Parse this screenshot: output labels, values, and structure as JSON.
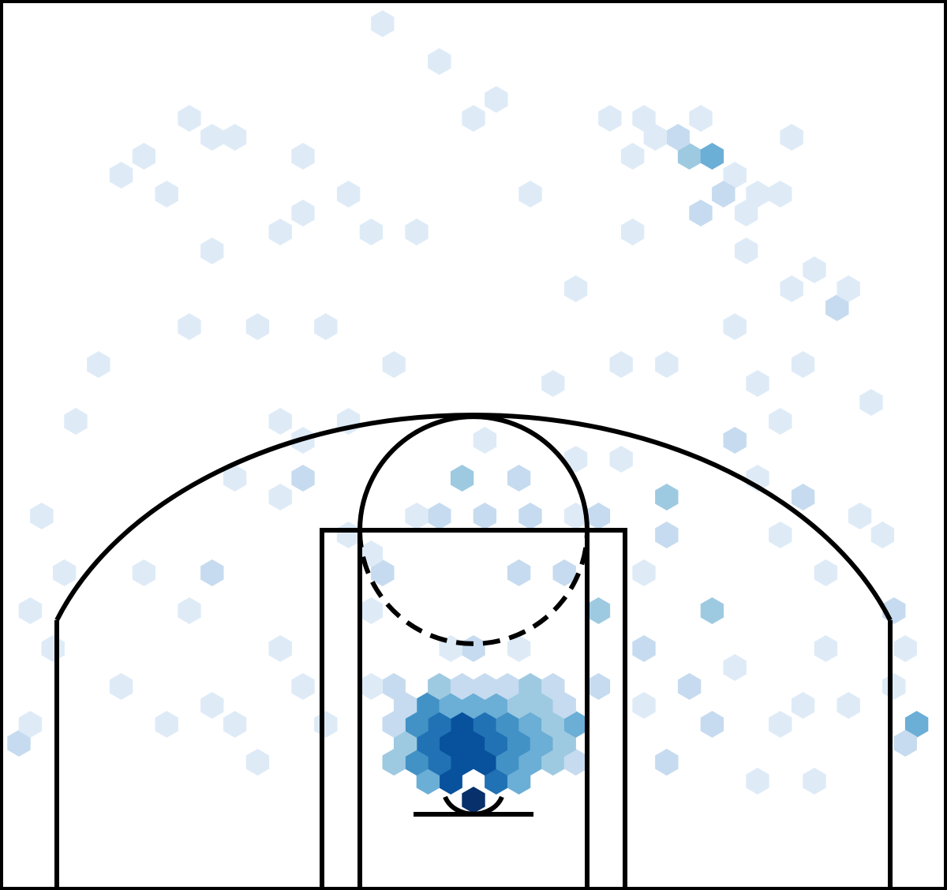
{
  "chart_data": {
    "type": "heatmap",
    "subtype": "hexbin-shot-chart",
    "title": "",
    "xlabel": "",
    "ylabel": "",
    "xlim": [
      -250,
      250
    ],
    "ylim": [
      -47.5,
      422.5
    ],
    "axes_visible": false,
    "grid": false,
    "legend": "none",
    "colormap": [
      "#f7fbff",
      "#deebf7",
      "#c6dbef",
      "#9ecae1",
      "#6baed6",
      "#4292c6",
      "#2171b5",
      "#08519c",
      "#08306b"
    ],
    "bins": [
      {
        "x": 0,
        "y": 0,
        "level": 8
      },
      {
        "x": -12,
        "y": 10,
        "level": 7
      },
      {
        "x": 12,
        "y": 10,
        "level": 6
      },
      {
        "x": -24,
        "y": 10,
        "level": 4
      },
      {
        "x": 24,
        "y": 10,
        "level": 4
      },
      {
        "x": -6,
        "y": 20,
        "level": 7
      },
      {
        "x": 6,
        "y": 20,
        "level": 7
      },
      {
        "x": -18,
        "y": 20,
        "level": 6
      },
      {
        "x": 18,
        "y": 20,
        "level": 5
      },
      {
        "x": -30,
        "y": 20,
        "level": 5
      },
      {
        "x": 30,
        "y": 20,
        "level": 4
      },
      {
        "x": -42,
        "y": 20,
        "level": 3
      },
      {
        "x": 42,
        "y": 20,
        "level": 3
      },
      {
        "x": 54,
        "y": 20,
        "level": 2
      },
      {
        "x": -12,
        "y": 30,
        "level": 7
      },
      {
        "x": 0,
        "y": 30,
        "level": 7
      },
      {
        "x": 12,
        "y": 30,
        "level": 6
      },
      {
        "x": -24,
        "y": 30,
        "level": 6
      },
      {
        "x": 24,
        "y": 30,
        "level": 5
      },
      {
        "x": -36,
        "y": 30,
        "level": 3
      },
      {
        "x": 36,
        "y": 30,
        "level": 4
      },
      {
        "x": 48,
        "y": 30,
        "level": 3
      },
      {
        "x": -6,
        "y": 40,
        "level": 7
      },
      {
        "x": 6,
        "y": 40,
        "level": 6
      },
      {
        "x": -18,
        "y": 40,
        "level": 6
      },
      {
        "x": 18,
        "y": 40,
        "level": 5
      },
      {
        "x": -30,
        "y": 40,
        "level": 5
      },
      {
        "x": 30,
        "y": 40,
        "level": 4
      },
      {
        "x": 42,
        "y": 40,
        "level": 3
      },
      {
        "x": 54,
        "y": 40,
        "level": 4
      },
      {
        "x": -42,
        "y": 40,
        "level": 2
      },
      {
        "x": -24,
        "y": 50,
        "level": 5
      },
      {
        "x": -12,
        "y": 50,
        "level": 4
      },
      {
        "x": 0,
        "y": 50,
        "level": 4
      },
      {
        "x": 12,
        "y": 50,
        "level": 4
      },
      {
        "x": 24,
        "y": 50,
        "level": 3
      },
      {
        "x": 36,
        "y": 50,
        "level": 3
      },
      {
        "x": 48,
        "y": 50,
        "level": 2
      },
      {
        "x": -36,
        "y": 50,
        "level": 2
      },
      {
        "x": -18,
        "y": 60,
        "level": 3
      },
      {
        "x": -6,
        "y": 60,
        "level": 2
      },
      {
        "x": 6,
        "y": 60,
        "level": 2
      },
      {
        "x": 18,
        "y": 60,
        "level": 2
      },
      {
        "x": 30,
        "y": 60,
        "level": 3
      },
      {
        "x": 42,
        "y": 60,
        "level": 2
      },
      {
        "x": -42,
        "y": 60,
        "level": 2
      },
      {
        "x": -54,
        "y": 60,
        "level": 1
      },
      {
        "x": 0,
        "y": 80,
        "level": 2
      },
      {
        "x": -12,
        "y": 80,
        "level": 1
      },
      {
        "x": 24,
        "y": 80,
        "level": 1
      },
      {
        "x": -48,
        "y": 120,
        "level": 2
      },
      {
        "x": 24,
        "y": 120,
        "level": 2
      },
      {
        "x": 48,
        "y": 120,
        "level": 2
      },
      {
        "x": -18,
        "y": 150,
        "level": 2
      },
      {
        "x": 6,
        "y": 150,
        "level": 2
      },
      {
        "x": 30,
        "y": 150,
        "level": 2
      },
      {
        "x": 54,
        "y": 150,
        "level": 1
      },
      {
        "x": 66,
        "y": 150,
        "level": 2
      },
      {
        "x": -6,
        "y": 170,
        "level": 3
      },
      {
        "x": 24,
        "y": 170,
        "level": 2
      },
      {
        "x": -90,
        "y": 170,
        "level": 2
      },
      {
        "x": 6,
        "y": 190,
        "level": 1
      },
      {
        "x": -54,
        "y": 100,
        "level": 1
      },
      {
        "x": 66,
        "y": 100,
        "level": 3
      },
      {
        "x": 90,
        "y": 80,
        "level": 2
      },
      {
        "x": 126,
        "y": 100,
        "level": 3
      },
      {
        "x": 126,
        "y": 40,
        "level": 2
      },
      {
        "x": 102,
        "y": 20,
        "level": 2
      },
      {
        "x": 114,
        "y": 60,
        "level": 2
      },
      {
        "x": 102,
        "y": 140,
        "level": 2
      },
      {
        "x": 102,
        "y": 160,
        "level": 3
      },
      {
        "x": 162,
        "y": 140,
        "level": 1
      },
      {
        "x": 174,
        "y": 160,
        "level": 2
      },
      {
        "x": 138,
        "y": 190,
        "level": 2
      },
      {
        "x": 150,
        "y": 170,
        "level": 1
      },
      {
        "x": 138,
        "y": 250,
        "level": 1
      },
      {
        "x": 222,
        "y": 100,
        "level": 2
      },
      {
        "x": 234,
        "y": 40,
        "level": 4
      },
      {
        "x": 228,
        "y": 30,
        "level": 2
      },
      {
        "x": 228,
        "y": 80,
        "level": 1
      },
      {
        "x": 210,
        "y": 210,
        "level": 1
      },
      {
        "x": 192,
        "y": 260,
        "level": 2
      },
      {
        "x": 198,
        "y": 270,
        "level": 1
      },
      {
        "x": 180,
        "y": 280,
        "level": 1
      },
      {
        "x": 150,
        "y": 320,
        "level": 1
      },
      {
        "x": 138,
        "y": 330,
        "level": 1
      },
      {
        "x": 144,
        "y": 290,
        "level": 1
      },
      {
        "x": 114,
        "y": 340,
        "level": 3
      },
      {
        "x": 126,
        "y": 340,
        "level": 4
      },
      {
        "x": 108,
        "y": 350,
        "level": 2
      },
      {
        "x": 96,
        "y": 350,
        "level": 1
      },
      {
        "x": 132,
        "y": 320,
        "level": 2
      },
      {
        "x": 120,
        "y": 310,
        "level": 2
      },
      {
        "x": 144,
        "y": 310,
        "level": 1
      },
      {
        "x": 162,
        "y": 320,
        "level": 1
      },
      {
        "x": 90,
        "y": 360,
        "level": 1
      },
      {
        "x": 84,
        "y": 340,
        "level": 1
      },
      {
        "x": 120,
        "y": 360,
        "level": 1
      },
      {
        "x": 168,
        "y": 350,
        "level": 1
      },
      {
        "x": -48,
        "y": 410,
        "level": 1
      },
      {
        "x": -18,
        "y": 390,
        "level": 1
      },
      {
        "x": 12,
        "y": 370,
        "level": 1
      },
      {
        "x": 0,
        "y": 360,
        "level": 1
      },
      {
        "x": -126,
        "y": 350,
        "level": 1
      },
      {
        "x": -90,
        "y": 340,
        "level": 1
      },
      {
        "x": 72,
        "y": 360,
        "level": 1
      },
      {
        "x": 84,
        "y": 300,
        "level": 1
      },
      {
        "x": -198,
        "y": 230,
        "level": 1
      },
      {
        "x": -210,
        "y": 200,
        "level": 1
      },
      {
        "x": -234,
        "y": 100,
        "level": 1
      },
      {
        "x": -240,
        "y": 30,
        "level": 2
      },
      {
        "x": -234,
        "y": 40,
        "level": 1
      },
      {
        "x": -186,
        "y": 60,
        "level": 1
      },
      {
        "x": -162,
        "y": 40,
        "level": 1
      },
      {
        "x": -138,
        "y": 50,
        "level": 1
      },
      {
        "x": -174,
        "y": 120,
        "level": 1
      },
      {
        "x": -138,
        "y": 120,
        "level": 2
      },
      {
        "x": -150,
        "y": 100,
        "level": 1
      },
      {
        "x": -102,
        "y": 160,
        "level": 1
      },
      {
        "x": -126,
        "y": 170,
        "level": 1
      },
      {
        "x": -90,
        "y": 190,
        "level": 1
      },
      {
        "x": -102,
        "y": 200,
        "level": 1
      },
      {
        "x": -114,
        "y": 250,
        "level": 1
      },
      {
        "x": -78,
        "y": 250,
        "level": 1
      },
      {
        "x": -150,
        "y": 250,
        "level": 1
      },
      {
        "x": -138,
        "y": 290,
        "level": 1
      },
      {
        "x": -102,
        "y": 300,
        "level": 1
      },
      {
        "x": -54,
        "y": 300,
        "level": 1
      },
      {
        "x": -66,
        "y": 320,
        "level": 1
      },
      {
        "x": -162,
        "y": 320,
        "level": 1
      },
      {
        "x": -174,
        "y": 340,
        "level": 1
      },
      {
        "x": -186,
        "y": 330,
        "level": 1
      },
      {
        "x": -150,
        "y": 360,
        "level": 1
      },
      {
        "x": -138,
        "y": 350,
        "level": 1
      },
      {
        "x": -90,
        "y": 310,
        "level": 1
      },
      {
        "x": -30,
        "y": 300,
        "level": 1
      },
      {
        "x": 30,
        "y": 320,
        "level": 1
      },
      {
        "x": 54,
        "y": 270,
        "level": 1
      },
      {
        "x": 78,
        "y": 230,
        "level": 1
      },
      {
        "x": 102,
        "y": 230,
        "level": 1
      },
      {
        "x": 42,
        "y": 220,
        "level": 1
      },
      {
        "x": -42,
        "y": 230,
        "level": 1
      },
      {
        "x": -66,
        "y": 200,
        "level": 1
      },
      {
        "x": -30,
        "y": 150,
        "level": 1
      },
      {
        "x": -66,
        "y": 140,
        "level": 1
      },
      {
        "x": 54,
        "y": 180,
        "level": 1
      },
      {
        "x": 78,
        "y": 180,
        "level": 1
      },
      {
        "x": 150,
        "y": 220,
        "level": 1
      },
      {
        "x": 162,
        "y": 200,
        "level": 1
      },
      {
        "x": 168,
        "y": 270,
        "level": 1
      },
      {
        "x": 174,
        "y": 230,
        "level": 1
      },
      {
        "x": 186,
        "y": 120,
        "level": 1
      },
      {
        "x": 186,
        "y": 80,
        "level": 1
      },
      {
        "x": 174,
        "y": 50,
        "level": 1
      },
      {
        "x": 162,
        "y": 40,
        "level": 1
      },
      {
        "x": 198,
        "y": 50,
        "level": 1
      },
      {
        "x": 180,
        "y": 10,
        "level": 1
      },
      {
        "x": 150,
        "y": 10,
        "level": 1
      },
      {
        "x": 138,
        "y": 70,
        "level": 1
      },
      {
        "x": 90,
        "y": 120,
        "level": 1
      },
      {
        "x": 66,
        "y": 60,
        "level": 2
      },
      {
        "x": 90,
        "y": 50,
        "level": 1
      },
      {
        "x": -90,
        "y": 60,
        "level": 1
      },
      {
        "x": -102,
        "y": 80,
        "level": 1
      },
      {
        "x": -78,
        "y": 40,
        "level": 1
      },
      {
        "x": -114,
        "y": 20,
        "level": 1
      },
      {
        "x": -126,
        "y": 40,
        "level": 1
      },
      {
        "x": -54,
        "y": 130,
        "level": 1
      },
      {
        "x": 222,
        "y": 60,
        "level": 1
      },
      {
        "x": 216,
        "y": 140,
        "level": 1
      },
      {
        "x": 204,
        "y": 150,
        "level": 1
      },
      {
        "x": -222,
        "y": 80,
        "level": 1
      },
      {
        "x": -228,
        "y": 150,
        "level": 1
      },
      {
        "x": -216,
        "y": 120,
        "level": 1
      }
    ]
  }
}
